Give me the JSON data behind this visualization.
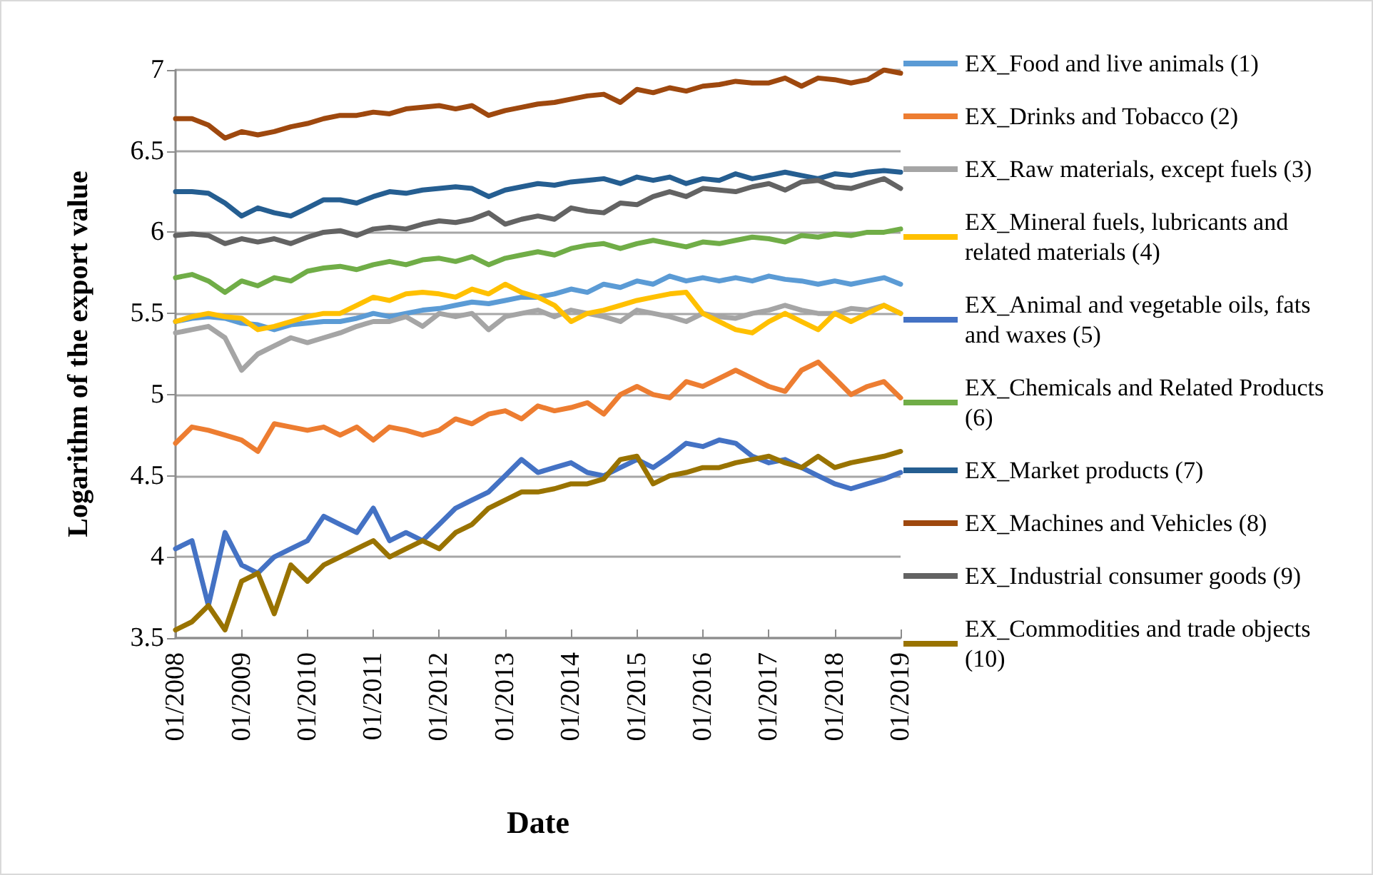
{
  "chart_data": {
    "type": "line",
    "xlabel": "Date",
    "ylabel": "Logarithm of the export value",
    "x": [
      "2008-01",
      "2008-04",
      "2008-07",
      "2008-10",
      "2009-01",
      "2009-04",
      "2009-07",
      "2009-10",
      "2010-01",
      "2010-04",
      "2010-07",
      "2010-10",
      "2011-01",
      "2011-04",
      "2011-07",
      "2011-10",
      "2012-01",
      "2012-04",
      "2012-07",
      "2012-10",
      "2013-01",
      "2013-04",
      "2013-07",
      "2013-10",
      "2014-01",
      "2014-04",
      "2014-07",
      "2014-10",
      "2015-01",
      "2015-04",
      "2015-07",
      "2015-10",
      "2016-01",
      "2016-04",
      "2016-07",
      "2016-10",
      "2017-01",
      "2017-04",
      "2017-07",
      "2017-10",
      "2018-01",
      "2018-04",
      "2018-07",
      "2018-10",
      "2019-01"
    ],
    "xlim": [
      "2008-01",
      "2019-01"
    ],
    "xticks": [
      {
        "value": "2008-01",
        "label": "01/2008"
      },
      {
        "value": "2009-01",
        "label": "01/2009"
      },
      {
        "value": "2010-01",
        "label": "01/2010"
      },
      {
        "value": "2011-01",
        "label": "01/2011"
      },
      {
        "value": "2012-01",
        "label": "01/2012"
      },
      {
        "value": "2013-01",
        "label": "01/2013"
      },
      {
        "value": "2014-01",
        "label": "01/2014"
      },
      {
        "value": "2015-01",
        "label": "01/2015"
      },
      {
        "value": "2016-01",
        "label": "01/2016"
      },
      {
        "value": "2017-01",
        "label": "01/2017"
      },
      {
        "value": "2018-01",
        "label": "01/2018"
      },
      {
        "value": "2019-01",
        "label": "01/2019"
      }
    ],
    "ylim": [
      3.5,
      7
    ],
    "yticks": [
      3.5,
      4,
      4.5,
      5,
      5.5,
      6,
      6.5,
      7
    ],
    "grid": "y",
    "legend": "right",
    "marker": "none",
    "line_style": "solid",
    "series": [
      {
        "name": "EX_Food and live animals (1)",
        "color": "#5b9bd5",
        "values": [
          5.45,
          5.47,
          5.48,
          5.47,
          5.44,
          5.43,
          5.4,
          5.43,
          5.44,
          5.45,
          5.45,
          5.47,
          5.5,
          5.48,
          5.5,
          5.52,
          5.53,
          5.55,
          5.57,
          5.56,
          5.58,
          5.6,
          5.6,
          5.62,
          5.65,
          5.63,
          5.68,
          5.66,
          5.7,
          5.68,
          5.73,
          5.7,
          5.72,
          5.7,
          5.72,
          5.7,
          5.73,
          5.71,
          5.7,
          5.68,
          5.7,
          5.68,
          5.7,
          5.72,
          5.68
        ]
      },
      {
        "name": "EX_Drinks and Tobacco (2)",
        "color": "#ed7d31",
        "values": [
          4.7,
          4.8,
          4.78,
          4.75,
          4.72,
          4.65,
          4.82,
          4.8,
          4.78,
          4.8,
          4.75,
          4.8,
          4.72,
          4.8,
          4.78,
          4.75,
          4.78,
          4.85,
          4.82,
          4.88,
          4.9,
          4.85,
          4.93,
          4.9,
          4.92,
          4.95,
          4.88,
          5.0,
          5.05,
          5.0,
          4.98,
          5.08,
          5.05,
          5.1,
          5.15,
          5.1,
          5.05,
          5.02,
          5.15,
          5.2,
          5.1,
          5.0,
          5.05,
          5.08,
          4.98
        ]
      },
      {
        "name": "EX_Raw materials, except fuels (3)",
        "color": "#a5a5a5",
        "values": [
          5.38,
          5.4,
          5.42,
          5.35,
          5.15,
          5.25,
          5.3,
          5.35,
          5.32,
          5.35,
          5.38,
          5.42,
          5.45,
          5.45,
          5.48,
          5.42,
          5.5,
          5.48,
          5.5,
          5.4,
          5.48,
          5.5,
          5.52,
          5.48,
          5.52,
          5.5,
          5.48,
          5.45,
          5.52,
          5.5,
          5.48,
          5.45,
          5.5,
          5.48,
          5.47,
          5.5,
          5.52,
          5.55,
          5.52,
          5.5,
          5.5,
          5.53,
          5.52,
          5.55,
          5.5
        ]
      },
      {
        "name": "EX_Mineral fuels, lubricants and related materials (4)",
        "color": "#ffc000",
        "values": [
          5.45,
          5.48,
          5.5,
          5.48,
          5.47,
          5.4,
          5.42,
          5.45,
          5.48,
          5.5,
          5.5,
          5.55,
          5.6,
          5.58,
          5.62,
          5.63,
          5.62,
          5.6,
          5.65,
          5.62,
          5.68,
          5.63,
          5.6,
          5.55,
          5.45,
          5.5,
          5.52,
          5.55,
          5.58,
          5.6,
          5.62,
          5.63,
          5.5,
          5.45,
          5.4,
          5.38,
          5.45,
          5.5,
          5.45,
          5.4,
          5.5,
          5.45,
          5.5,
          5.55,
          5.5
        ]
      },
      {
        "name": "EX_Animal and vegetable oils, fats and waxes (5)",
        "color": "#4472c4",
        "values": [
          4.05,
          4.1,
          3.7,
          4.15,
          3.95,
          3.9,
          4.0,
          4.05,
          4.1,
          4.25,
          4.2,
          4.15,
          4.3,
          4.1,
          4.15,
          4.1,
          4.2,
          4.3,
          4.35,
          4.4,
          4.5,
          4.6,
          4.52,
          4.55,
          4.58,
          4.52,
          4.5,
          4.55,
          4.6,
          4.55,
          4.62,
          4.7,
          4.68,
          4.72,
          4.7,
          4.62,
          4.58,
          4.6,
          4.55,
          4.5,
          4.45,
          4.42,
          4.45,
          4.48,
          4.52
        ]
      },
      {
        "name": "EX_Chemicals and Related Products (6)",
        "color": "#70ad47",
        "values": [
          5.72,
          5.74,
          5.7,
          5.63,
          5.7,
          5.67,
          5.72,
          5.7,
          5.76,
          5.78,
          5.79,
          5.77,
          5.8,
          5.82,
          5.8,
          5.83,
          5.84,
          5.82,
          5.85,
          5.8,
          5.84,
          5.86,
          5.88,
          5.86,
          5.9,
          5.92,
          5.93,
          5.9,
          5.93,
          5.95,
          5.93,
          5.91,
          5.94,
          5.93,
          5.95,
          5.97,
          5.96,
          5.94,
          5.98,
          5.97,
          5.99,
          5.98,
          6.0,
          6.0,
          6.02
        ]
      },
      {
        "name": "EX_Market products (7)",
        "color": "#255e91",
        "values": [
          6.25,
          6.25,
          6.24,
          6.18,
          6.1,
          6.15,
          6.12,
          6.1,
          6.15,
          6.2,
          6.2,
          6.18,
          6.22,
          6.25,
          6.24,
          6.26,
          6.27,
          6.28,
          6.27,
          6.22,
          6.26,
          6.28,
          6.3,
          6.29,
          6.31,
          6.32,
          6.33,
          6.3,
          6.34,
          6.32,
          6.34,
          6.3,
          6.33,
          6.32,
          6.36,
          6.33,
          6.35,
          6.37,
          6.35,
          6.33,
          6.36,
          6.35,
          6.37,
          6.38,
          6.37
        ]
      },
      {
        "name": "EX_Machines and Vehicles (8)",
        "color": "#9e480e",
        "values": [
          6.7,
          6.7,
          6.66,
          6.58,
          6.62,
          6.6,
          6.62,
          6.65,
          6.67,
          6.7,
          6.72,
          6.72,
          6.74,
          6.73,
          6.76,
          6.77,
          6.78,
          6.76,
          6.78,
          6.72,
          6.75,
          6.77,
          6.79,
          6.8,
          6.82,
          6.84,
          6.85,
          6.8,
          6.88,
          6.86,
          6.89,
          6.87,
          6.9,
          6.91,
          6.93,
          6.92,
          6.92,
          6.95,
          6.9,
          6.95,
          6.94,
          6.92,
          6.94,
          7.0,
          6.98
        ]
      },
      {
        "name": "EX_Industrial consumer goods (9)",
        "color": "#636363",
        "values": [
          5.98,
          5.99,
          5.98,
          5.93,
          5.96,
          5.94,
          5.96,
          5.93,
          5.97,
          6.0,
          6.01,
          5.98,
          6.02,
          6.03,
          6.02,
          6.05,
          6.07,
          6.06,
          6.08,
          6.12,
          6.05,
          6.08,
          6.1,
          6.08,
          6.15,
          6.13,
          6.12,
          6.18,
          6.17,
          6.22,
          6.25,
          6.22,
          6.27,
          6.26,
          6.25,
          6.28,
          6.3,
          6.26,
          6.31,
          6.32,
          6.28,
          6.27,
          6.3,
          6.33,
          6.27
        ]
      },
      {
        "name": "EX_Commodities and trade objects (10)",
        "color": "#997300",
        "values": [
          3.55,
          3.6,
          3.7,
          3.55,
          3.85,
          3.9,
          3.65,
          3.95,
          3.85,
          3.95,
          4.0,
          4.05,
          4.1,
          4.0,
          4.05,
          4.1,
          4.05,
          4.15,
          4.2,
          4.3,
          4.35,
          4.4,
          4.4,
          4.42,
          4.45,
          4.45,
          4.48,
          4.6,
          4.62,
          4.45,
          4.5,
          4.52,
          4.55,
          4.55,
          4.58,
          4.6,
          4.62,
          4.58,
          4.55,
          4.62,
          4.55,
          4.58,
          4.6,
          4.62,
          4.65
        ]
      }
    ]
  }
}
